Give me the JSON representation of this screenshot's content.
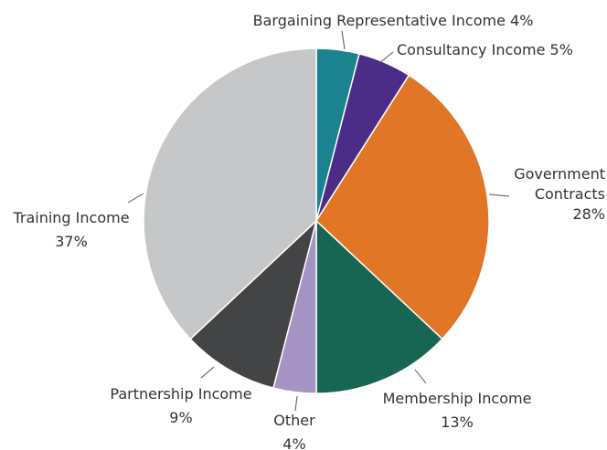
{
  "chart_data": {
    "type": "pie",
    "title": "",
    "start_angle_deg": 0,
    "direction": "clockwise",
    "slices": [
      {
        "label": [
          "Bargaining Representative Income 4%"
        ],
        "value": 4,
        "color": "#1b8290"
      },
      {
        "label": [
          "Consultancy Income 5%"
        ],
        "value": 5,
        "color": "#4b2c87"
      },
      {
        "label": [
          "Government",
          "Contracts",
          "28%"
        ],
        "value": 28,
        "color": "#e07626"
      },
      {
        "label": [
          "Membership Income",
          "13%"
        ],
        "value": 13,
        "color": "#176654"
      },
      {
        "label": [
          "Other",
          "4%"
        ],
        "value": 4,
        "color": "#a593c4"
      },
      {
        "label": [
          "Partnership Income",
          "9%"
        ],
        "value": 9,
        "color": "#434446"
      },
      {
        "label": [
          "Training Income",
          "37%"
        ],
        "value": 37,
        "color": "#c6c7c9"
      }
    ]
  }
}
